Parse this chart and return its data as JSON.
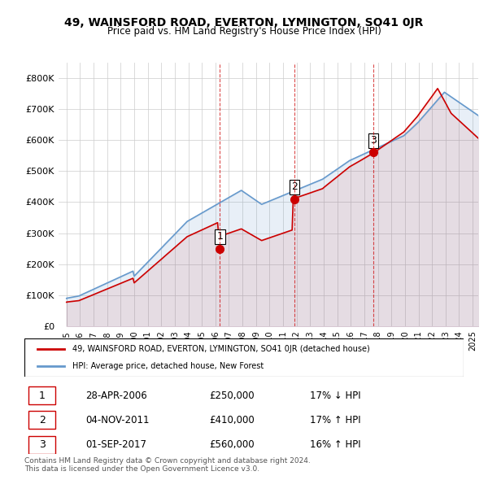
{
  "title": "49, WAINSFORD ROAD, EVERTON, LYMINGTON, SO41 0JR",
  "subtitle": "Price paid vs. HM Land Registry's House Price Index (HPI)",
  "property_label": "49, WAINSFORD ROAD, EVERTON, LYMINGTON, SO41 0JR (detached house)",
  "hpi_label": "HPI: Average price, detached house, New Forest",
  "sale_dates": [
    "2006-04-28",
    "2011-11-04",
    "2017-09-01"
  ],
  "sale_prices": [
    250000,
    410000,
    560000
  ],
  "sale_labels": [
    "1",
    "2",
    "3"
  ],
  "sale_annotations": [
    [
      "1",
      "28-APR-2006",
      "£250,000",
      "17% ↓ HPI"
    ],
    [
      "2",
      "04-NOV-2011",
      "£410,000",
      "17% ↑ HPI"
    ],
    [
      "3",
      "01-SEP-2017",
      "£560,000",
      "16% ↑ HPI"
    ]
  ],
  "footer": "Contains HM Land Registry data © Crown copyright and database right 2024.\nThis data is licensed under the Open Government Licence v3.0.",
  "ylim": [
    0,
    850000
  ],
  "yticks": [
    0,
    100000,
    200000,
    300000,
    400000,
    500000,
    600000,
    700000,
    800000
  ],
  "ytick_labels": [
    "£0",
    "£100K",
    "£200K",
    "£300K",
    "£400K",
    "£500K",
    "£600K",
    "£700K",
    "£800K"
  ],
  "red_color": "#cc0000",
  "blue_color": "#6699cc",
  "background_color": "#ffffff",
  "grid_color": "#cccccc"
}
